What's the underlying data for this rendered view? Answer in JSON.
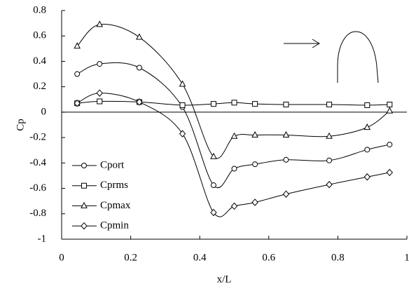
{
  "chart_data": {
    "type": "line",
    "x_label": "x/L",
    "y_label": "Cp",
    "xlim": [
      0,
      1
    ],
    "xticks": [
      0,
      0.2,
      0.4,
      0.6,
      0.8,
      1
    ],
    "ylim": [
      -1,
      0.8
    ],
    "yticks": [
      -1,
      -0.8,
      -0.6,
      -0.4,
      -0.2,
      0,
      0.2,
      0.4,
      0.6,
      0.8
    ],
    "x": [
      0.045,
      0.11,
      0.225,
      0.35,
      0.44,
      0.5,
      0.56,
      0.65,
      0.775,
      0.885,
      0.95
    ],
    "legend": "lower left",
    "series": [
      {
        "name": "Cport",
        "color": "#000000",
        "marker": "circle",
        "values": [
          0.3,
          0.38,
          0.35,
          0.04,
          -0.575,
          -0.445,
          -0.41,
          -0.375,
          -0.38,
          -0.295,
          -0.255
        ]
      },
      {
        "name": "Cprms",
        "color": "#000000",
        "marker": "square",
        "values": [
          0.07,
          0.085,
          0.08,
          0.055,
          0.065,
          0.075,
          0.065,
          0.06,
          0.06,
          0.055,
          0.06
        ]
      },
      {
        "name": "Cpmax",
        "color": "#000000",
        "marker": "triangle",
        "values": [
          0.52,
          0.69,
          0.59,
          0.22,
          -0.35,
          -0.19,
          -0.18,
          -0.18,
          -0.19,
          -0.12,
          0.01
        ]
      },
      {
        "name": "Cpmin",
        "color": "#000000",
        "marker": "diamond",
        "values": [
          0.07,
          0.15,
          0.08,
          -0.17,
          -0.79,
          -0.74,
          -0.71,
          -0.645,
          -0.57,
          -0.51,
          -0.475
        ]
      }
    ]
  }
}
